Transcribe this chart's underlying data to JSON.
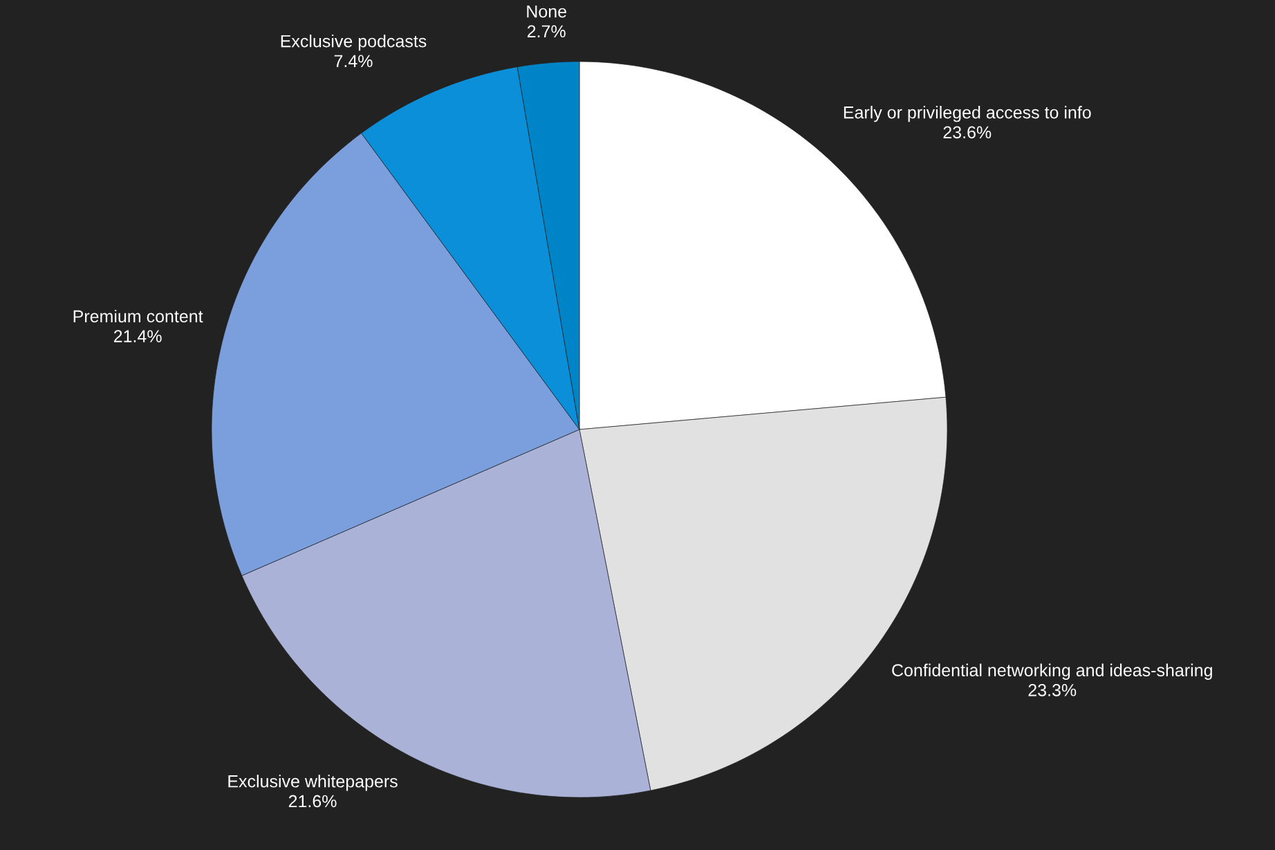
{
  "chart_data": {
    "type": "pie",
    "categories": [
      "Early or privileged access to info",
      "Confidential networking and ideas-sharing",
      "Exclusive whitepapers",
      "Premium content",
      "Exclusive podcasts",
      "None"
    ],
    "values": [
      23.6,
      23.3,
      21.6,
      21.4,
      7.4,
      2.7
    ],
    "value_labels": [
      "23.6%",
      "23.3%",
      "21.6%",
      "21.4%",
      "7.4%",
      "2.7%"
    ],
    "colors": [
      "#ffffff",
      "#e1e1e1",
      "#aab2d8",
      "#7b9edc",
      "#0b8fd9",
      "#0084c8"
    ],
    "legend": false
  }
}
